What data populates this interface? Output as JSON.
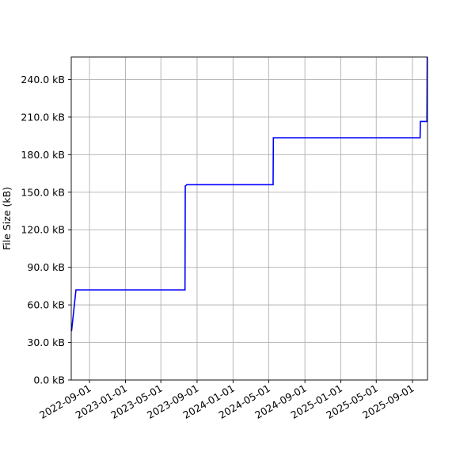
{
  "chart_data": {
    "type": "line",
    "title": "",
    "xlabel": "",
    "ylabel": "File Size (kB)",
    "grid": true,
    "series": [
      {
        "color": "#0000ff",
        "x": [
          "2022-07-02",
          "2022-07-17",
          "2022-07-18",
          "2023-07-22",
          "2023-07-23",
          "2023-07-24",
          "2023-07-28",
          "2023-07-30",
          "2024-05-16",
          "2024-05-17",
          "2025-09-27",
          "2025-09-28",
          "2025-10-20",
          "2025-10-21"
        ],
        "y": [
          39,
          72,
          72,
          72,
          155,
          155,
          156,
          156,
          156,
          193.5,
          193.5,
          206.5,
          206.5,
          258
        ]
      }
    ],
    "x_ticks": [
      "2022-09-01",
      "2023-01-01",
      "2023-05-01",
      "2023-09-01",
      "2024-01-01",
      "2024-05-01",
      "2024-09-01",
      "2025-01-01",
      "2025-05-01",
      "2025-09-01"
    ],
    "y_ticks": [
      0,
      30,
      60,
      90,
      120,
      150,
      180,
      210,
      240
    ],
    "y_tick_labels": [
      "0.0 kB",
      "30.0 kB",
      "60.0 kB",
      "90.0 kB",
      "120.0 kB",
      "150.0 kB",
      "180.0 kB",
      "210.0 kB",
      "240.0 kB"
    ],
    "xlim": [
      "2022-07-01",
      "2025-10-22"
    ],
    "ylim": [
      0,
      258
    ]
  }
}
